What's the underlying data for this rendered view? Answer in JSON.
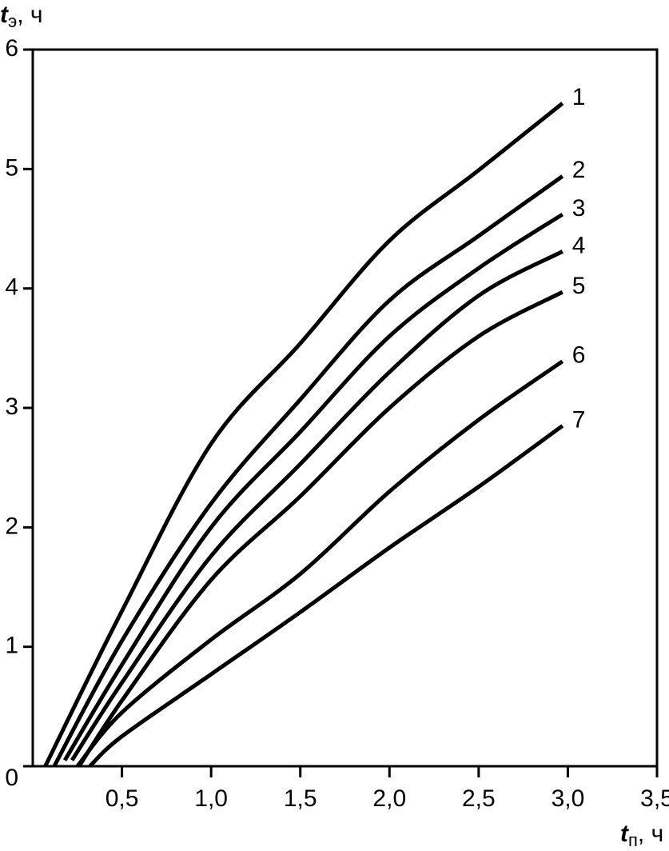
{
  "chart_data": {
    "type": "line",
    "y_label": {
      "symbol": "t",
      "subscript": "э",
      "unit": ", ч"
    },
    "x_label": {
      "symbol": "t",
      "subscript": "п",
      "unit": ", ч"
    },
    "xlim": [
      0,
      3.5
    ],
    "ylim": [
      0,
      6
    ],
    "xticks": [
      {
        "value": 0.5,
        "label": "0,5"
      },
      {
        "value": 1.0,
        "label": "1,0"
      },
      {
        "value": 1.5,
        "label": "1,5"
      },
      {
        "value": 2.0,
        "label": "2,0"
      },
      {
        "value": 2.5,
        "label": "2,5"
      },
      {
        "value": 3.0,
        "label": "3,0"
      },
      {
        "value": 3.5,
        "label": "3,5"
      }
    ],
    "yticks": [
      0,
      1,
      2,
      3,
      4,
      5,
      6
    ],
    "grid": false,
    "series": [
      {
        "name": "1",
        "color": "#000000",
        "x": [
          0.07,
          0.5,
          1.0,
          1.5,
          2.0,
          2.5,
          2.97
        ],
        "values": [
          0,
          1.3,
          2.7,
          3.54,
          4.4,
          4.99,
          5.55
        ]
      },
      {
        "name": "2",
        "color": "#000000",
        "x": [
          0.12,
          0.5,
          1.0,
          1.5,
          2.0,
          2.5,
          2.97
        ],
        "values": [
          0,
          1.05,
          2.2,
          3.07,
          3.9,
          4.44,
          4.94
        ]
      },
      {
        "name": "3",
        "color": "#000000",
        "x": [
          0.18,
          0.5,
          1.0,
          1.5,
          2.0,
          2.5,
          2.97
        ],
        "values": [
          0.05,
          0.85,
          2.0,
          2.8,
          3.6,
          4.17,
          4.62
        ]
      },
      {
        "name": "4",
        "color": "#000000",
        "x": [
          0.22,
          0.5,
          1.0,
          1.5,
          2.0,
          2.5,
          2.97
        ],
        "values": [
          0.05,
          0.7,
          1.76,
          2.53,
          3.3,
          3.94,
          4.31
        ]
      },
      {
        "name": "5",
        "color": "#000000",
        "x": [
          0.26,
          0.5,
          1.0,
          1.5,
          2.0,
          2.5,
          2.97
        ],
        "values": [
          0,
          0.55,
          1.56,
          2.26,
          3.0,
          3.6,
          3.97
        ]
      },
      {
        "name": "6",
        "color": "#000000",
        "x": [
          0.25,
          0.5,
          1.0,
          1.5,
          2.0,
          2.5,
          2.97
        ],
        "values": [
          0,
          0.45,
          1.06,
          1.61,
          2.3,
          2.9,
          3.39
        ]
      },
      {
        "name": "7",
        "color": "#000000",
        "x": [
          0.32,
          0.5,
          1.0,
          1.5,
          2.0,
          2.5,
          2.97
        ],
        "values": [
          0,
          0.25,
          0.77,
          1.29,
          1.83,
          2.34,
          2.85
        ]
      }
    ]
  }
}
